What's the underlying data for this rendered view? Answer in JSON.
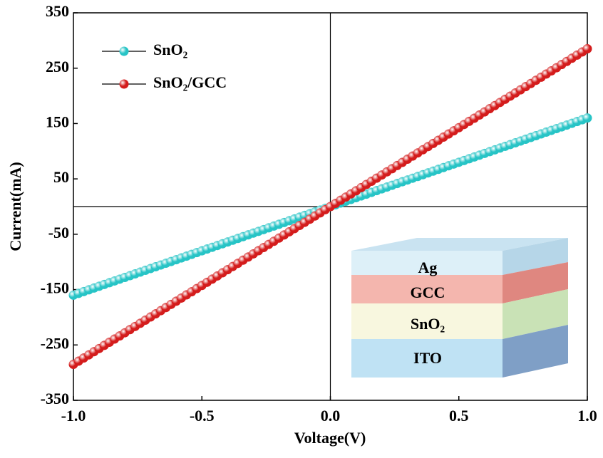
{
  "chart_data": {
    "type": "scatter",
    "xlabel": "Voltage(V)",
    "ylabel": "Current(mA)",
    "x": [
      -1,
      -0.98,
      -0.96,
      -0.94,
      -0.92,
      -0.9,
      -0.88,
      -0.86,
      -0.84,
      -0.82,
      -0.8,
      -0.78,
      -0.76,
      -0.74,
      -0.72,
      -0.7,
      -0.68,
      -0.66,
      -0.64,
      -0.62,
      -0.6,
      -0.58,
      -0.56,
      -0.54,
      -0.52,
      -0.5,
      -0.48,
      -0.46,
      -0.44,
      -0.42,
      -0.4,
      -0.38,
      -0.36,
      -0.34,
      -0.32,
      -0.3,
      -0.28,
      -0.26,
      -0.24,
      -0.22,
      -0.2,
      -0.18,
      -0.16,
      -0.14,
      -0.12,
      -0.1,
      -0.08,
      -0.06,
      -0.04,
      -0.02,
      0,
      0.02,
      0.04,
      0.06,
      0.08,
      0.1,
      0.12,
      0.14,
      0.16,
      0.18,
      0.2,
      0.22,
      0.24,
      0.26,
      0.28,
      0.3,
      0.32,
      0.34,
      0.36,
      0.38,
      0.4,
      0.42,
      0.44,
      0.46,
      0.48,
      0.5,
      0.52,
      0.54,
      0.56,
      0.58,
      0.6,
      0.62,
      0.64,
      0.66,
      0.68,
      0.7,
      0.72,
      0.74,
      0.76,
      0.78,
      0.8,
      0.82,
      0.84,
      0.86,
      0.88,
      0.9,
      0.92,
      0.94,
      0.96,
      0.98,
      1
    ],
    "series": [
      {
        "name": "SnO₂",
        "color": "#27c4c6",
        "values": [
          -160,
          -156.8,
          -153.6,
          -150.4,
          -147.2,
          -144,
          -140.8,
          -137.6,
          -134.4,
          -131.2,
          -128,
          -124.8,
          -121.6,
          -118.4,
          -115.2,
          -112,
          -108.8,
          -105.6,
          -102.4,
          -99.2,
          -96,
          -92.8,
          -89.6,
          -86.4,
          -83.2,
          -80,
          -76.8,
          -73.6,
          -70.4,
          -67.2,
          -64,
          -60.8,
          -57.6,
          -54.4,
          -51.2,
          -48,
          -44.8,
          -41.6,
          -38.4,
          -35.2,
          -32,
          -28.8,
          -25.6,
          -22.4,
          -19.2,
          -16,
          -12.8,
          -9.6,
          -6.4,
          -3.2,
          0,
          3.2,
          6.4,
          9.6,
          12.8,
          16,
          19.2,
          22.4,
          25.6,
          28.8,
          32,
          35.2,
          38.4,
          41.6,
          44.8,
          48,
          51.2,
          54.4,
          57.6,
          60.8,
          64,
          67.2,
          70.4,
          73.6,
          76.8,
          80,
          83.2,
          86.4,
          89.6,
          92.8,
          96,
          99.2,
          102.4,
          105.6,
          108.8,
          112,
          115.2,
          118.4,
          121.6,
          124.8,
          128,
          131.2,
          134.4,
          137.6,
          140.8,
          144,
          147.2,
          150.4,
          153.6,
          156.8,
          160
        ]
      },
      {
        "name": "SnO₂/GCC",
        "color": "#d41c1c",
        "values": [
          -285,
          -279.3,
          -273.6,
          -267.9,
          -262.2,
          -256.5,
          -250.8,
          -245.1,
          -239.4,
          -233.7,
          -228,
          -222.3,
          -216.6,
          -210.9,
          -205.2,
          -199.5,
          -193.8,
          -188.1,
          -182.4,
          -176.7,
          -171,
          -165.3,
          -159.6,
          -153.9,
          -148.2,
          -142.5,
          -136.8,
          -131.1,
          -125.4,
          -119.7,
          -114,
          -108.3,
          -102.6,
          -96.9,
          -91.2,
          -85.5,
          -79.8,
          -74.1,
          -68.4,
          -62.7,
          -57,
          -51.3,
          -45.6,
          -39.9,
          -34.2,
          -28.5,
          -22.8,
          -17.1,
          -11.4,
          -5.7,
          0,
          5.7,
          11.4,
          17.1,
          22.8,
          28.5,
          34.2,
          39.9,
          45.6,
          51.3,
          57,
          62.7,
          68.4,
          74.1,
          79.8,
          85.5,
          91.2,
          96.9,
          102.6,
          108.3,
          114,
          119.7,
          125.4,
          131.1,
          136.8,
          142.5,
          148.2,
          153.9,
          159.6,
          165.3,
          171,
          176.7,
          182.4,
          188.1,
          193.8,
          199.5,
          205.2,
          210.9,
          216.6,
          222.3,
          228,
          233.7,
          239.4,
          245.1,
          250.8,
          256.5,
          262.2,
          267.9,
          273.6,
          279.3,
          285
        ]
      }
    ],
    "xlim": [
      -1,
      1
    ],
    "xticks": [
      {
        "value": -1,
        "label": "-1.0"
      },
      -0.5,
      {
        "value": 0,
        "label": "0.0"
      },
      0.5,
      {
        "value": 1,
        "label": "1.0"
      }
    ],
    "ylim": [
      -350,
      350
    ],
    "yticks": [
      -350,
      -250,
      -150,
      -50,
      50,
      150,
      250,
      350
    ],
    "legend": "upper left",
    "inset_layers": [
      "Ag",
      "GCC",
      "SnO₂",
      "ITO"
    ]
  }
}
